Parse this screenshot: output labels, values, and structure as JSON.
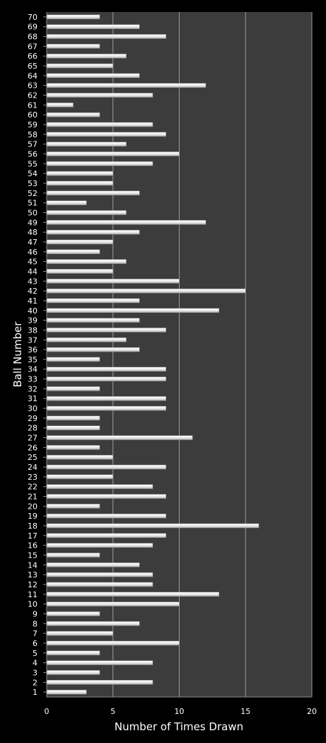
{
  "chart_data": {
    "type": "bar",
    "orientation": "horizontal",
    "title": "",
    "xlabel": "Number of Times Drawn",
    "ylabel": "Ball Number",
    "xlim": [
      0,
      20
    ],
    "xticks": [
      0,
      5,
      10,
      15,
      20
    ],
    "grid": true,
    "legend": "none",
    "colors": {
      "background": "#000000",
      "plot": "#3c3c3c",
      "bar": "#e6e6e6",
      "grid": "#9a9a9a",
      "text": "#ffffff"
    },
    "categories": [
      "1",
      "2",
      "3",
      "4",
      "5",
      "6",
      "7",
      "8",
      "9",
      "10",
      "11",
      "12",
      "13",
      "14",
      "15",
      "16",
      "17",
      "18",
      "19",
      "20",
      "21",
      "22",
      "23",
      "24",
      "25",
      "26",
      "27",
      "28",
      "29",
      "30",
      "31",
      "32",
      "33",
      "34",
      "35",
      "36",
      "37",
      "38",
      "39",
      "40",
      "41",
      "42",
      "43",
      "44",
      "45",
      "46",
      "47",
      "48",
      "49",
      "50",
      "51",
      "52",
      "53",
      "54",
      "55",
      "56",
      "57",
      "58",
      "59",
      "60",
      "61",
      "62",
      "63",
      "64",
      "65",
      "66",
      "67",
      "68",
      "69",
      "70"
    ],
    "values": [
      3,
      8,
      4,
      8,
      4,
      10,
      5,
      7,
      4,
      10,
      13,
      8,
      8,
      7,
      4,
      8,
      9,
      16,
      9,
      4,
      9,
      8,
      5,
      9,
      5,
      4,
      11,
      4,
      4,
      9,
      9,
      4,
      9,
      9,
      4,
      7,
      6,
      9,
      7,
      13,
      7,
      15,
      10,
      5,
      6,
      4,
      5,
      7,
      12,
      6,
      3,
      7,
      5,
      5,
      8,
      10,
      6,
      9,
      8,
      4,
      2,
      8,
      12,
      7,
      5,
      6,
      4,
      9,
      7,
      4
    ]
  }
}
